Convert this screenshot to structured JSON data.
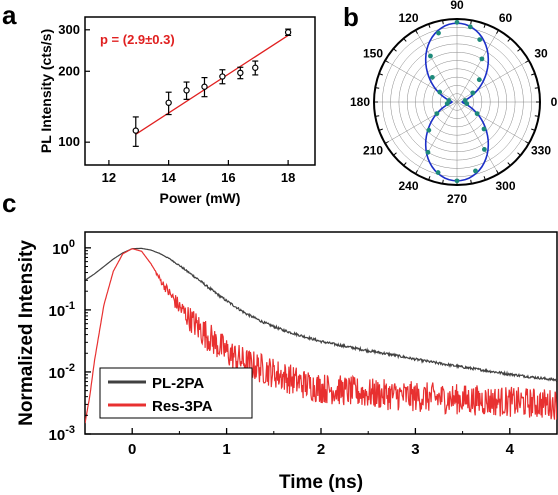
{
  "panels": {
    "a": "a",
    "b": "b",
    "c": "c"
  },
  "chart_data": [
    {
      "id": "a",
      "type": "scatter",
      "xlabel": "Power (mW)",
      "ylabel": "PL Intensity (cts/s)",
      "xlim": [
        11.2,
        18.9
      ],
      "ylim": [
        80,
        340
      ],
      "yscale": "log",
      "xticks": [
        12,
        14,
        16,
        18
      ],
      "yticks": [
        100,
        200,
        300
      ],
      "points": [
        {
          "x": 12.9,
          "y": 112,
          "err": 16
        },
        {
          "x": 14.0,
          "y": 147,
          "err": 16
        },
        {
          "x": 14.6,
          "y": 166,
          "err": 14
        },
        {
          "x": 15.2,
          "y": 172,
          "err": 16
        },
        {
          "x": 15.8,
          "y": 190,
          "err": 13
        },
        {
          "x": 16.4,
          "y": 197,
          "err": 11
        },
        {
          "x": 16.9,
          "y": 207,
          "err": 14
        },
        {
          "x": 18.0,
          "y": 293,
          "err": 9
        }
      ],
      "fit": {
        "x": [
          12.9,
          18.0
        ],
        "y": [
          108,
          284
        ]
      },
      "annotation": "p = (2.9±0.3)",
      "colors": {
        "points": "#000000",
        "fit": "#e02020",
        "annotation": "#e02020"
      }
    },
    {
      "id": "b",
      "type": "polar",
      "angle_ticks": [
        "90",
        "60",
        "30",
        "0",
        "330",
        "300",
        "270",
        "240",
        "210",
        "180",
        "150",
        "120"
      ],
      "angles_deg": [
        90,
        60,
        30,
        0,
        330,
        300,
        270,
        240,
        210,
        180,
        150,
        120
      ],
      "points": [
        {
          "theta": 90,
          "r": 0.96
        },
        {
          "theta": 80,
          "r": 0.92
        },
        {
          "theta": 70,
          "r": 0.8
        },
        {
          "theta": 60,
          "r": 0.6
        },
        {
          "theta": 45,
          "r": 0.38
        },
        {
          "theta": 30,
          "r": 0.22
        },
        {
          "theta": 10,
          "r": 0.1
        },
        {
          "theta": 350,
          "r": 0.12
        },
        {
          "theta": 330,
          "r": 0.28
        },
        {
          "theta": 315,
          "r": 0.46
        },
        {
          "theta": 300,
          "r": 0.66
        },
        {
          "theta": 285,
          "r": 0.86
        },
        {
          "theta": 270,
          "r": 0.95
        },
        {
          "theta": 255,
          "r": 0.88
        },
        {
          "theta": 240,
          "r": 0.7
        },
        {
          "theta": 225,
          "r": 0.48
        },
        {
          "theta": 210,
          "r": 0.28
        },
        {
          "theta": 190,
          "r": 0.12
        },
        {
          "theta": 170,
          "r": 0.1
        },
        {
          "theta": 150,
          "r": 0.24
        },
        {
          "theta": 135,
          "r": 0.42
        },
        {
          "theta": 120,
          "r": 0.64
        },
        {
          "theta": 105,
          "r": 0.86
        }
      ],
      "fit_model": "cos2",
      "fit_min": 0.06,
      "fit_max": 0.95,
      "colors": {
        "points": "#1e8a7a",
        "fit": "#1c2fc8",
        "grid": "#888888"
      }
    },
    {
      "id": "c",
      "type": "line",
      "xlabel": "Time (ns)",
      "ylabel": "Normalized Intensity",
      "xlim": [
        -0.5,
        4.5
      ],
      "ylim": [
        0.001,
        1.8
      ],
      "yscale": "log",
      "xticks": [
        0,
        1,
        2,
        3,
        4
      ],
      "yticks": [
        {
          "value": 1,
          "base": "10",
          "exp": "0"
        },
        {
          "value": 0.1,
          "base": "10",
          "exp": "-1"
        },
        {
          "value": 0.01,
          "base": "10",
          "exp": "-2"
        },
        {
          "value": 0.001,
          "base": "10",
          "exp": "-3"
        }
      ],
      "series": [
        {
          "name": "PL-2PA",
          "color": "#404040",
          "x": [
            -0.5,
            -0.4,
            -0.3,
            -0.2,
            -0.1,
            0,
            0.1,
            0.2,
            0.3,
            0.4,
            0.5,
            0.6,
            0.7,
            0.8,
            0.9,
            1.0,
            1.2,
            1.4,
            1.6,
            1.8,
            2.0,
            2.25,
            2.5,
            2.75,
            3.0,
            3.25,
            3.5,
            3.75,
            4.0,
            4.25,
            4.5
          ],
          "y": [
            0.3,
            0.38,
            0.5,
            0.66,
            0.83,
            0.97,
            0.98,
            0.92,
            0.8,
            0.66,
            0.52,
            0.4,
            0.31,
            0.235,
            0.18,
            0.14,
            0.088,
            0.062,
            0.047,
            0.038,
            0.031,
            0.026,
            0.022,
            0.019,
            0.016,
            0.0138,
            0.012,
            0.0105,
            0.0092,
            0.0082,
            0.0074
          ],
          "noise": 0.08
        },
        {
          "name": "Res-3PA",
          "color": "#e83030",
          "x": [
            -0.5,
            -0.45,
            -0.4,
            -0.3,
            -0.2,
            -0.1,
            0,
            0.1,
            0.2,
            0.3,
            0.4,
            0.5,
            0.6,
            0.7,
            0.8,
            0.9,
            1.0,
            1.1,
            1.2,
            1.4,
            1.6,
            1.8,
            2.0,
            2.5,
            3.0,
            3.5,
            4.0,
            4.5
          ],
          "y": [
            0.0015,
            0.004,
            0.015,
            0.12,
            0.42,
            0.8,
            0.97,
            0.88,
            0.55,
            0.3,
            0.18,
            0.11,
            0.075,
            0.052,
            0.038,
            0.028,
            0.021,
            0.017,
            0.014,
            0.011,
            0.0085,
            0.0065,
            0.0055,
            0.0045,
            0.004,
            0.0036,
            0.0033,
            0.003
          ],
          "noise": 0.45
        }
      ],
      "legend_placement": "bottom-left"
    }
  ]
}
